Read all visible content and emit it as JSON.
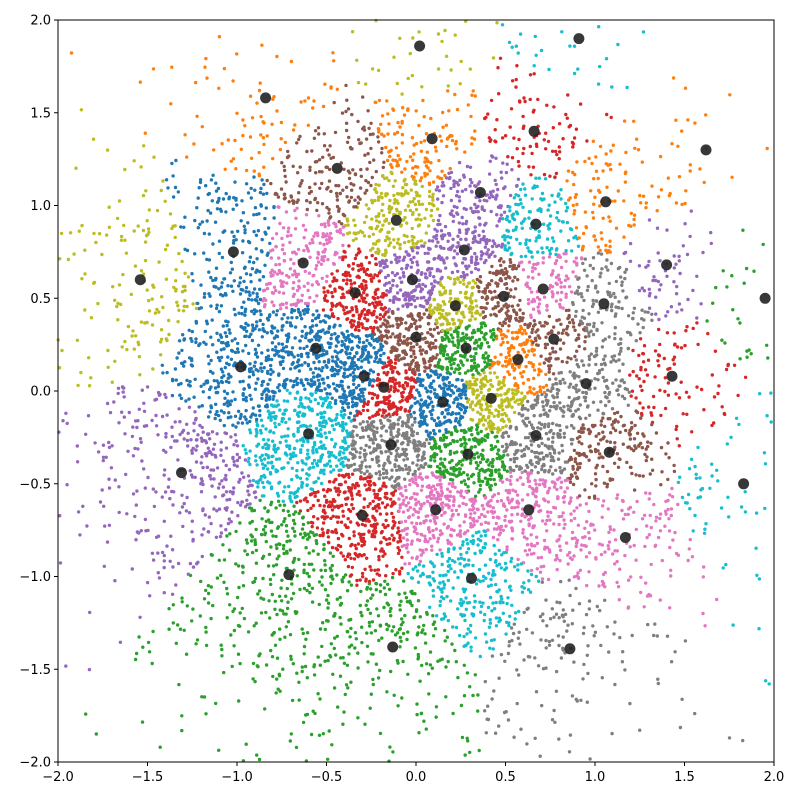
{
  "chart_data": {
    "type": "scatter",
    "title": "",
    "xlabel": "",
    "ylabel": "",
    "xlim": [
      -2.0,
      2.0
    ],
    "ylim": [
      -2.0,
      2.0
    ],
    "grid": false,
    "x_ticks": [
      "−2.0",
      "−1.5",
      "−1.0",
      "−0.5",
      "0.0",
      "0.5",
      "1.0",
      "1.5",
      "2.0"
    ],
    "y_ticks": [
      "−2.0",
      "−1.5",
      "−1.0",
      "−0.5",
      "0.0",
      "0.5",
      "1.0",
      "1.5",
      "2.0"
    ],
    "palette": [
      "#1f77b4",
      "#ff7f0e",
      "#2ca02c",
      "#d62728",
      "#9467bd",
      "#8c564b",
      "#e377c2",
      "#7f7f7f",
      "#bcbd22",
      "#17becf"
    ],
    "centroid_color": "#222222",
    "centroids": [
      {
        "x": -0.18,
        "y": 0.02,
        "c": "#d62728"
      },
      {
        "x": 0.15,
        "y": -0.06,
        "c": "#1f77b4"
      },
      {
        "x": 0.42,
        "y": -0.04,
        "c": "#bcbd22"
      },
      {
        "x": 0.28,
        "y": 0.23,
        "c": "#2ca02c"
      },
      {
        "x": 0.0,
        "y": 0.29,
        "c": "#8c564b"
      },
      {
        "x": 0.22,
        "y": 0.46,
        "c": "#bcbd22"
      },
      {
        "x": 0.57,
        "y": 0.17,
        "c": "#ff7f0e"
      },
      {
        "x": 0.77,
        "y": 0.28,
        "c": "#8c564b"
      },
      {
        "x": 0.29,
        "y": -0.34,
        "c": "#2ca02c"
      },
      {
        "x": -0.14,
        "y": -0.29,
        "c": "#7f7f7f"
      },
      {
        "x": -0.29,
        "y": 0.08,
        "c": "#1f77b4"
      },
      {
        "x": -0.56,
        "y": 0.23,
        "c": "#1f77b4"
      },
      {
        "x": -0.34,
        "y": 0.53,
        "c": "#d62728"
      },
      {
        "x": -0.02,
        "y": 0.6,
        "c": "#9467bd"
      },
      {
        "x": 0.27,
        "y": 0.76,
        "c": "#9467bd"
      },
      {
        "x": 0.49,
        "y": 0.51,
        "c": "#8c564b"
      },
      {
        "x": 0.71,
        "y": 0.55,
        "c": "#e377c2"
      },
      {
        "x": 0.67,
        "y": -0.24,
        "c": "#7f7f7f"
      },
      {
        "x": 0.95,
        "y": 0.04,
        "c": "#7f7f7f"
      },
      {
        "x": 1.05,
        "y": 0.47,
        "c": "#7f7f7f"
      },
      {
        "x": -0.63,
        "y": 0.69,
        "c": "#e377c2"
      },
      {
        "x": -0.11,
        "y": 0.92,
        "c": "#bcbd22"
      },
      {
        "x": 0.36,
        "y": 1.07,
        "c": "#9467bd"
      },
      {
        "x": 0.67,
        "y": 0.9,
        "c": "#17becf"
      },
      {
        "x": 1.06,
        "y": 1.02,
        "c": "#ff7f0e"
      },
      {
        "x": 1.08,
        "y": -0.33,
        "c": "#8c564b"
      },
      {
        "x": 1.43,
        "y": 0.08,
        "c": "#d62728"
      },
      {
        "x": 1.4,
        "y": 0.68,
        "c": "#9467bd"
      },
      {
        "x": -0.6,
        "y": -0.23,
        "c": "#17becf"
      },
      {
        "x": -0.3,
        "y": -0.67,
        "c": "#d62728"
      },
      {
        "x": 0.11,
        "y": -0.64,
        "c": "#e377c2"
      },
      {
        "x": 0.63,
        "y": -0.64,
        "c": "#e377c2"
      },
      {
        "x": -0.98,
        "y": 0.13,
        "c": "#1f77b4"
      },
      {
        "x": -1.02,
        "y": 0.75,
        "c": "#1f77b4"
      },
      {
        "x": -0.44,
        "y": 1.2,
        "c": "#8c564b"
      },
      {
        "x": 0.09,
        "y": 1.36,
        "c": "#ff7f0e"
      },
      {
        "x": 0.66,
        "y": 1.4,
        "c": "#d62728"
      },
      {
        "x": 1.17,
        "y": -0.79,
        "c": "#e377c2"
      },
      {
        "x": 0.31,
        "y": -1.01,
        "c": "#17becf"
      },
      {
        "x": -0.71,
        "y": -0.99,
        "c": "#2ca02c"
      },
      {
        "x": -1.31,
        "y": -0.44,
        "c": "#9467bd"
      },
      {
        "x": -1.54,
        "y": 0.6,
        "c": "#bcbd22"
      },
      {
        "x": -0.84,
        "y": 1.58,
        "c": "#ff7f0e"
      },
      {
        "x": 0.02,
        "y": 1.86,
        "c": "#bcbd22"
      },
      {
        "x": 0.91,
        "y": 1.9,
        "c": "#17becf"
      },
      {
        "x": 1.62,
        "y": 1.3,
        "c": "#ff7f0e"
      },
      {
        "x": 1.95,
        "y": 0.5,
        "c": "#2ca02c"
      },
      {
        "x": 1.83,
        "y": -0.5,
        "c": "#17becf"
      },
      {
        "x": 0.86,
        "y": -1.39,
        "c": "#7f7f7f"
      },
      {
        "x": -0.13,
        "y": -1.38,
        "c": "#2ca02c"
      }
    ]
  }
}
